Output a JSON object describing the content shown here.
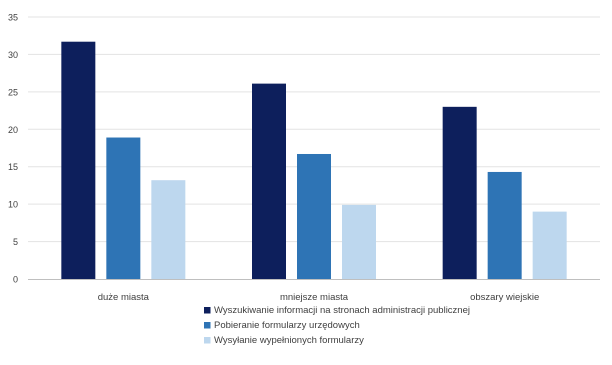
{
  "chart_data": {
    "type": "bar",
    "title": "",
    "xlabel": "",
    "ylabel": "",
    "categories": [
      "duże miasta",
      "mniejsze miasta",
      "obszary wiejskie"
    ],
    "ylim": [
      0,
      35
    ],
    "yticks": [
      0,
      5,
      10,
      15,
      20,
      25,
      30,
      35
    ],
    "grid": true,
    "legend_position": "bottom",
    "series": [
      {
        "name": "Wyszukiwanie informacji na stronach administracji publicznej",
        "color": "#0d1f5c",
        "values": [
          31.7,
          26.1,
          23.0
        ]
      },
      {
        "name": "Pobieranie formularzy urzędowych",
        "color": "#2e74b5",
        "values": [
          18.9,
          16.7,
          14.3
        ]
      },
      {
        "name": "Wysyłanie wypełnionych formularzy",
        "color": "#bdd7ee",
        "values": [
          13.2,
          9.9,
          9.0
        ]
      }
    ]
  }
}
